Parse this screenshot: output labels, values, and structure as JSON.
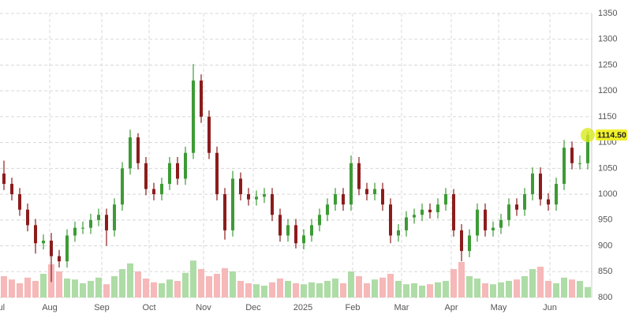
{
  "chart_data": {
    "type": "candlestick",
    "open": [
      1040,
      1020,
      1000,
      970,
      940,
      905,
      910,
      880,
      870,
      920,
      935,
      935,
      950,
      960,
      930,
      980,
      1050,
      1110,
      1060,
      1010,
      1000,
      1020,
      1060,
      1030,
      1080,
      1220,
      1150,
      1080,
      1000,
      930,
      1030,
      1000,
      990,
      995,
      1000,
      960,
      920,
      940,
      905,
      920,
      940,
      960,
      980,
      1000,
      980,
      1060,
      1010,
      1000,
      1010,
      980,
      920,
      930,
      955,
      960,
      970,
      965,
      980,
      1000,
      930,
      890,
      920,
      970,
      930,
      935,
      950,
      980,
      970,
      1000,
      1040,
      990,
      980,
      1020,
      1090,
      1060,
      1060
    ],
    "high": [
      1065,
      1032,
      1012,
      982,
      952,
      922,
      925,
      892,
      932,
      947,
      947,
      962,
      972,
      972,
      992,
      1062,
      1125,
      1118,
      1072,
      1022,
      1032,
      1072,
      1072,
      1092,
      1252,
      1232,
      1162,
      1092,
      1012,
      1045,
      1042,
      1012,
      1007,
      1012,
      1012,
      972,
      952,
      952,
      932,
      952,
      972,
      992,
      1012,
      1012,
      1075,
      1072,
      1022,
      1022,
      1022,
      992,
      942,
      967,
      972,
      982,
      982,
      992,
      1012,
      1010,
      942,
      932,
      982,
      982,
      947,
      962,
      992,
      992,
      1012,
      1052,
      1052,
      1002,
      1032,
      1105,
      1102,
      1075,
      1122
    ],
    "low": [
      1008,
      988,
      958,
      928,
      885,
      893,
      830,
      858,
      858,
      908,
      923,
      923,
      938,
      900,
      918,
      968,
      1038,
      1048,
      998,
      988,
      988,
      1008,
      1018,
      1018,
      1068,
      1138,
      1068,
      988,
      912,
      918,
      988,
      978,
      978,
      983,
      948,
      908,
      908,
      895,
      893,
      908,
      928,
      948,
      968,
      968,
      968,
      998,
      988,
      988,
      968,
      905,
      908,
      918,
      943,
      948,
      953,
      953,
      968,
      918,
      870,
      878,
      908,
      918,
      918,
      923,
      938,
      958,
      958,
      988,
      978,
      968,
      968,
      1008,
      1048,
      1048,
      1048
    ],
    "close": [
      1020,
      1000,
      970,
      940,
      905,
      910,
      880,
      870,
      920,
      935,
      935,
      950,
      960,
      930,
      980,
      1050,
      1110,
      1060,
      1010,
      1000,
      1020,
      1060,
      1030,
      1080,
      1220,
      1150,
      1080,
      1000,
      930,
      1030,
      1000,
      990,
      995,
      1000,
      960,
      920,
      940,
      905,
      920,
      940,
      960,
      980,
      1000,
      980,
      1060,
      1010,
      1000,
      1010,
      980,
      920,
      930,
      955,
      960,
      970,
      965,
      980,
      1000,
      930,
      890,
      920,
      970,
      930,
      935,
      950,
      980,
      970,
      1000,
      1040,
      990,
      980,
      1020,
      1090,
      1060,
      1060,
      1114.5
    ],
    "volume": [
      45,
      38,
      30,
      42,
      35,
      50,
      70,
      55,
      40,
      38,
      30,
      35,
      42,
      28,
      45,
      60,
      72,
      55,
      40,
      32,
      30,
      38,
      35,
      52,
      78,
      60,
      45,
      50,
      62,
      55,
      35,
      30,
      28,
      25,
      32,
      40,
      35,
      30,
      28,
      32,
      30,
      35,
      40,
      30,
      55,
      45,
      30,
      38,
      42,
      50,
      35,
      28,
      30,
      25,
      28,
      32,
      35,
      60,
      75,
      45,
      40,
      30,
      28,
      32,
      35,
      38,
      45,
      60,
      65,
      35,
      30,
      42,
      38,
      35,
      22
    ],
    "vlim": [
      0,
      100
    ],
    "last_label": "1114.50",
    "ylim": [
      800,
      1350
    ],
    "yticks": [
      800,
      850,
      900,
      950,
      1000,
      1050,
      1100,
      1150,
      1200,
      1250,
      1300,
      1350
    ],
    "xlim": [
      -0.5,
      74.5
    ],
    "xticks": [
      {
        "value": -0.6,
        "label": "Jul"
      },
      {
        "value": 5.8,
        "label": "Aug"
      },
      {
        "value": 12.4,
        "label": "Sep"
      },
      {
        "value": 18.4,
        "label": "Oct"
      },
      {
        "value": 25.3,
        "label": "Nov"
      },
      {
        "value": 31.6,
        "label": "Dec"
      },
      {
        "value": 37.9,
        "label": "2025"
      },
      {
        "value": 44.2,
        "label": "Feb"
      },
      {
        "value": 50.4,
        "label": "Mar"
      },
      {
        "value": 56.7,
        "label": "Apr"
      },
      {
        "value": 62.7,
        "label": "May"
      },
      {
        "value": 69.2,
        "label": "Jun"
      }
    ],
    "up_color": "#3d9b35",
    "down_color": "#8c1c1c",
    "volume_up_color": "#aedca6",
    "volume_down_color": "#f6b8b8",
    "grid": true
  }
}
